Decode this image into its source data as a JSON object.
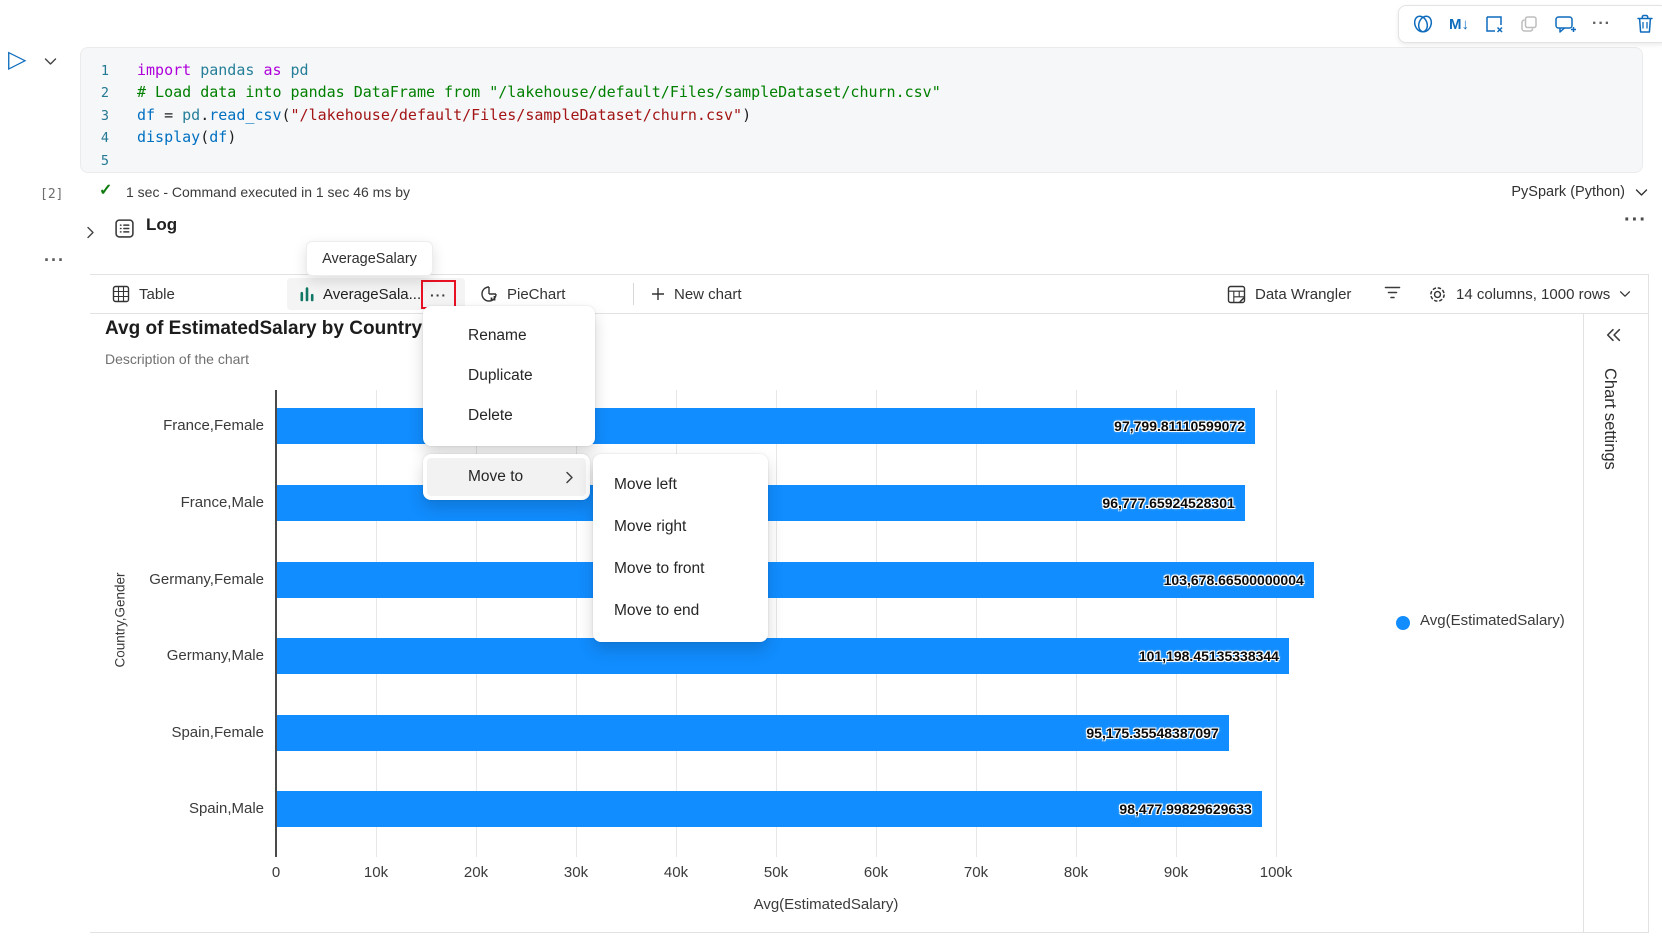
{
  "cell_toolbar": {
    "markdown_label": "M↓",
    "more_label": "···"
  },
  "code_cell": {
    "lines": [
      {
        "num": "1",
        "tokens": [
          [
            "kw",
            "import"
          ],
          [
            "pl",
            " "
          ],
          [
            "lib",
            "pandas"
          ],
          [
            "pl",
            " "
          ],
          [
            "kw",
            "as"
          ],
          [
            "pl",
            " "
          ],
          [
            "lib",
            "pd"
          ]
        ]
      },
      {
        "num": "2",
        "tokens": [
          [
            "cm",
            "# Load data into pandas DataFrame from \"/lakehouse/default/Files/sampleDataset/churn.csv\""
          ]
        ]
      },
      {
        "num": "3",
        "tokens": [
          [
            "var",
            "df"
          ],
          [
            "pl",
            " = "
          ],
          [
            "lib",
            "pd"
          ],
          [
            "pl",
            "."
          ],
          [
            "fn",
            "read_csv"
          ],
          [
            "pl",
            "("
          ],
          [
            "str",
            "\"/lakehouse/default/Files/sampleDataset/churn.csv\""
          ],
          [
            "pl",
            ")"
          ]
        ]
      },
      {
        "num": "4",
        "tokens": [
          [
            "fn",
            "display"
          ],
          [
            "pl",
            "("
          ],
          [
            "var",
            "df"
          ],
          [
            "pl",
            ")"
          ]
        ]
      },
      {
        "num": "5",
        "tokens": []
      }
    ],
    "execution_count": "[2]",
    "status_check": "✓",
    "status_text": "1 sec - Command executed in 1 sec 46 ms by",
    "kernel_label": "PySpark (Python)"
  },
  "log_section": {
    "label": "Log",
    "more_label": "···",
    "cell_more_label": "···"
  },
  "tooltip": {
    "text": "AverageSalary"
  },
  "tab_bar": {
    "table_label": "Table",
    "chart_tab_label": "AverageSala...",
    "chart_tab_more": "···",
    "pie_label": "PieChart",
    "new_chart_label": "New chart",
    "data_wrangler_label": "Data Wrangler",
    "dimensions_label": "14 columns, 1000 rows"
  },
  "chart_header": {
    "title": "Avg of EstimatedSalary by Country",
    "subtitle": "Description of the chart"
  },
  "right_rail": {
    "label": "Chart settings"
  },
  "context_menu": {
    "items": [
      "Rename",
      "Duplicate",
      "Delete"
    ],
    "move_to_label": "Move to",
    "submenu_items": [
      "Move left",
      "Move right",
      "Move to front",
      "Move to end"
    ]
  },
  "chart_data": {
    "type": "bar",
    "orientation": "horizontal",
    "title": "Avg of EstimatedSalary by Country",
    "categories": [
      "France,Female",
      "France,Male",
      "Germany,Female",
      "Germany,Male",
      "Spain,Female",
      "Spain,Male"
    ],
    "values": [
      97799.81110599072,
      96777.65924528301,
      103678.66500000004,
      101198.45135338344,
      95175.35548387097,
      98477.99829629633
    ],
    "value_labels": [
      "97,799.81110599072",
      "96,777.65924528301",
      "103,678.66500000004",
      "101,198.45135338344",
      "95,175.35548387097",
      "98,477.99829629633"
    ],
    "xlabel": "Avg(EstimatedSalary)",
    "ylabel": "Country,Gender",
    "xticks": [
      "0",
      "10k",
      "20k",
      "30k",
      "40k",
      "50k",
      "60k",
      "70k",
      "80k",
      "90k",
      "100k"
    ],
    "xlim": [
      0,
      107000
    ],
    "grid": true,
    "bar_color": "#118DFF",
    "legend": [
      "Avg(EstimatedSalary)"
    ],
    "legend_position": "right"
  },
  "colors": {
    "accent_blue": "#0F6CBD",
    "bar_blue": "#118DFF",
    "tab_icon_teal": "#117865",
    "highlight_red": "#E81123",
    "check_green": "#107C10"
  }
}
